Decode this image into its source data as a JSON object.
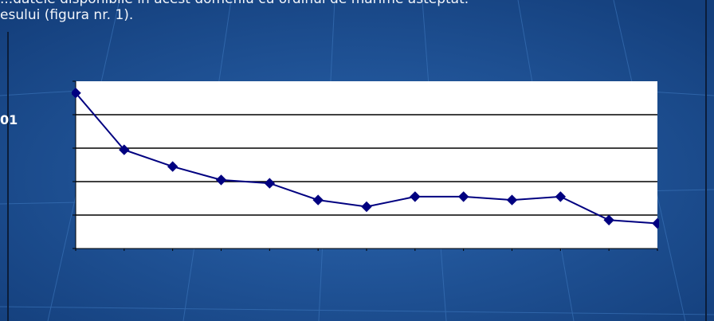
{
  "slide": {
    "text_line1": "...datele disponibile in acest domeniu cu ordinul de marime asteptat.",
    "text_line2": "esului (figura nr. 1).",
    "side_label": "01"
  },
  "colors": {
    "background": "#1b4f93",
    "plot_area": "#ffffff",
    "series": "#000080"
  },
  "chart_data": {
    "type": "line",
    "title": "",
    "xlabel": "",
    "ylabel": "",
    "x": [
      1,
      2,
      3,
      4,
      5,
      6,
      7,
      8,
      9,
      10,
      11,
      12,
      13
    ],
    "values": [
      4.65,
      2.95,
      2.45,
      2.05,
      1.95,
      1.45,
      1.25,
      1.55,
      1.55,
      1.45,
      1.55,
      0.85,
      0.75
    ],
    "ylim": [
      0,
      5
    ],
    "y_gridlines": [
      1,
      2,
      3,
      4
    ],
    "grid": true,
    "legend": "none",
    "tick_labels_visible": false
  }
}
